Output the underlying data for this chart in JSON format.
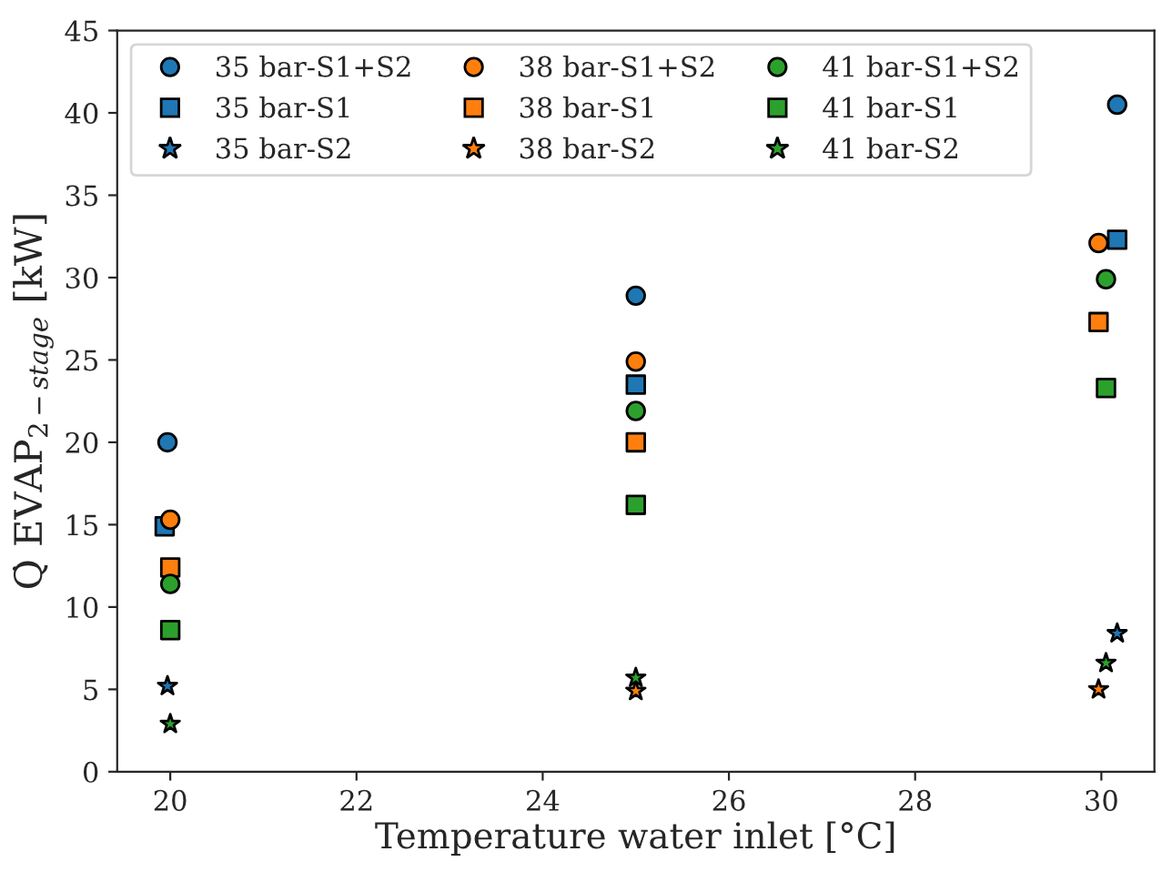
{
  "chart_data": {
    "type": "scatter",
    "xlabel": "Temperature water inlet [°C]",
    "ylabel": "Q̇ EVAP$_{2−stage}$ [kW]",
    "xlim": [
      19.43,
      30.57
    ],
    "xticks": [
      20,
      22,
      24,
      26,
      28,
      30
    ],
    "ylim": [
      0,
      45
    ],
    "yticks": [
      0,
      5,
      10,
      15,
      20,
      25,
      30,
      35,
      40,
      45
    ],
    "grid": false,
    "legend": "top left",
    "series": [
      {
        "name": "35 bar-S1+S2",
        "color": "#1f77b4",
        "marker": "circle",
        "x": [
          19.97,
          25,
          30.17
        ],
        "values": [
          20.0,
          28.9,
          40.5
        ]
      },
      {
        "name": "35 bar-S1",
        "color": "#1f77b4",
        "marker": "square",
        "x": [
          19.94,
          25,
          30.17
        ],
        "values": [
          14.9,
          23.5,
          32.3
        ]
      },
      {
        "name": "35 bar-S2",
        "color": "#1f77b4",
        "marker": "star",
        "x": [
          19.97,
          25,
          30.17
        ],
        "values": [
          5.2,
          null,
          8.4
        ]
      },
      {
        "name": "38 bar-S1+S2",
        "color": "#ff7f0e",
        "marker": "circle",
        "x": [
          20,
          25,
          29.97
        ],
        "values": [
          15.3,
          24.9,
          32.1
        ]
      },
      {
        "name": "38 bar-S1",
        "color": "#ff7f0e",
        "marker": "square",
        "x": [
          20,
          25,
          29.97
        ],
        "values": [
          12.4,
          20.0,
          27.3
        ]
      },
      {
        "name": "38 bar-S2",
        "color": "#ff7f0e",
        "marker": "star",
        "x": [
          null,
          25,
          29.97
        ],
        "values": [
          null,
          4.9,
          5.0
        ]
      },
      {
        "name": "41 bar-S1+S2",
        "color": "#2ca02c",
        "marker": "circle",
        "x": [
          20,
          25,
          30.05
        ],
        "values": [
          11.4,
          21.9,
          29.9
        ]
      },
      {
        "name": "41 bar-S1",
        "color": "#2ca02c",
        "marker": "square",
        "x": [
          20,
          25,
          30.05
        ],
        "values": [
          8.6,
          16.2,
          23.3
        ]
      },
      {
        "name": "41 bar-S2",
        "color": "#2ca02c",
        "marker": "star",
        "x": [
          20,
          25,
          30.05
        ],
        "values": [
          2.9,
          5.7,
          6.6
        ]
      }
    ]
  }
}
